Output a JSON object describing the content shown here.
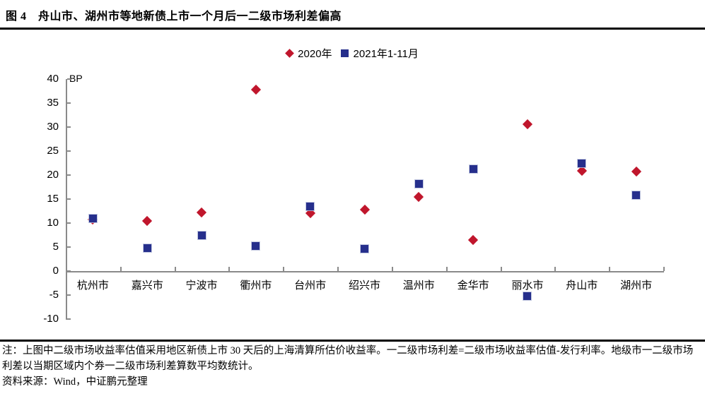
{
  "header": {
    "title": "图 4　舟山市、湖州市等地新债上市一个月后一二级市场利差偏高"
  },
  "legend": {
    "items": [
      {
        "label": "2020年",
        "marker": "diamond-icon",
        "color": "#C0162C"
      },
      {
        "label": "2021年1-11月",
        "marker": "square-icon",
        "color": "#262F8C"
      }
    ]
  },
  "chart_data": {
    "type": "scatter",
    "unit_label": "BP",
    "categories": [
      "杭州市",
      "嘉兴市",
      "宁波市",
      "衢州市",
      "台州市",
      "绍兴市",
      "温州市",
      "金华市",
      "丽水市",
      "舟山市",
      "湖州市"
    ],
    "series": [
      {
        "name": "2020年",
        "marker": "diamond",
        "color": "#C0162C",
        "values": [
          10.7,
          10.5,
          12.2,
          37.8,
          12.0,
          12.8,
          15.5,
          6.4,
          30.6,
          20.9,
          20.7
        ]
      },
      {
        "name": "2021年1-11月",
        "marker": "square",
        "color": "#262F8C",
        "values": [
          10.9,
          4.8,
          7.4,
          5.2,
          13.4,
          4.7,
          18.1,
          21.2,
          -5.2,
          22.4,
          15.8
        ]
      }
    ],
    "ylim": [
      -10,
      40
    ],
    "yticks": [
      40,
      35,
      30,
      25,
      20,
      15,
      10,
      5,
      0,
      -5,
      -10
    ],
    "legend_position": "top-center",
    "grid": "off"
  },
  "footer": {
    "note": "注：上图中二级市场收益率估值采用地区新债上市 30 天后的上海清算所估价收益率。一二级市场利差=二级市场收益率估值-发行利率。地级市一二级市场利差以当期区域内个券一二级市场利差算数平均数统计。",
    "source": "资料来源：Wind，中证鹏元整理"
  }
}
